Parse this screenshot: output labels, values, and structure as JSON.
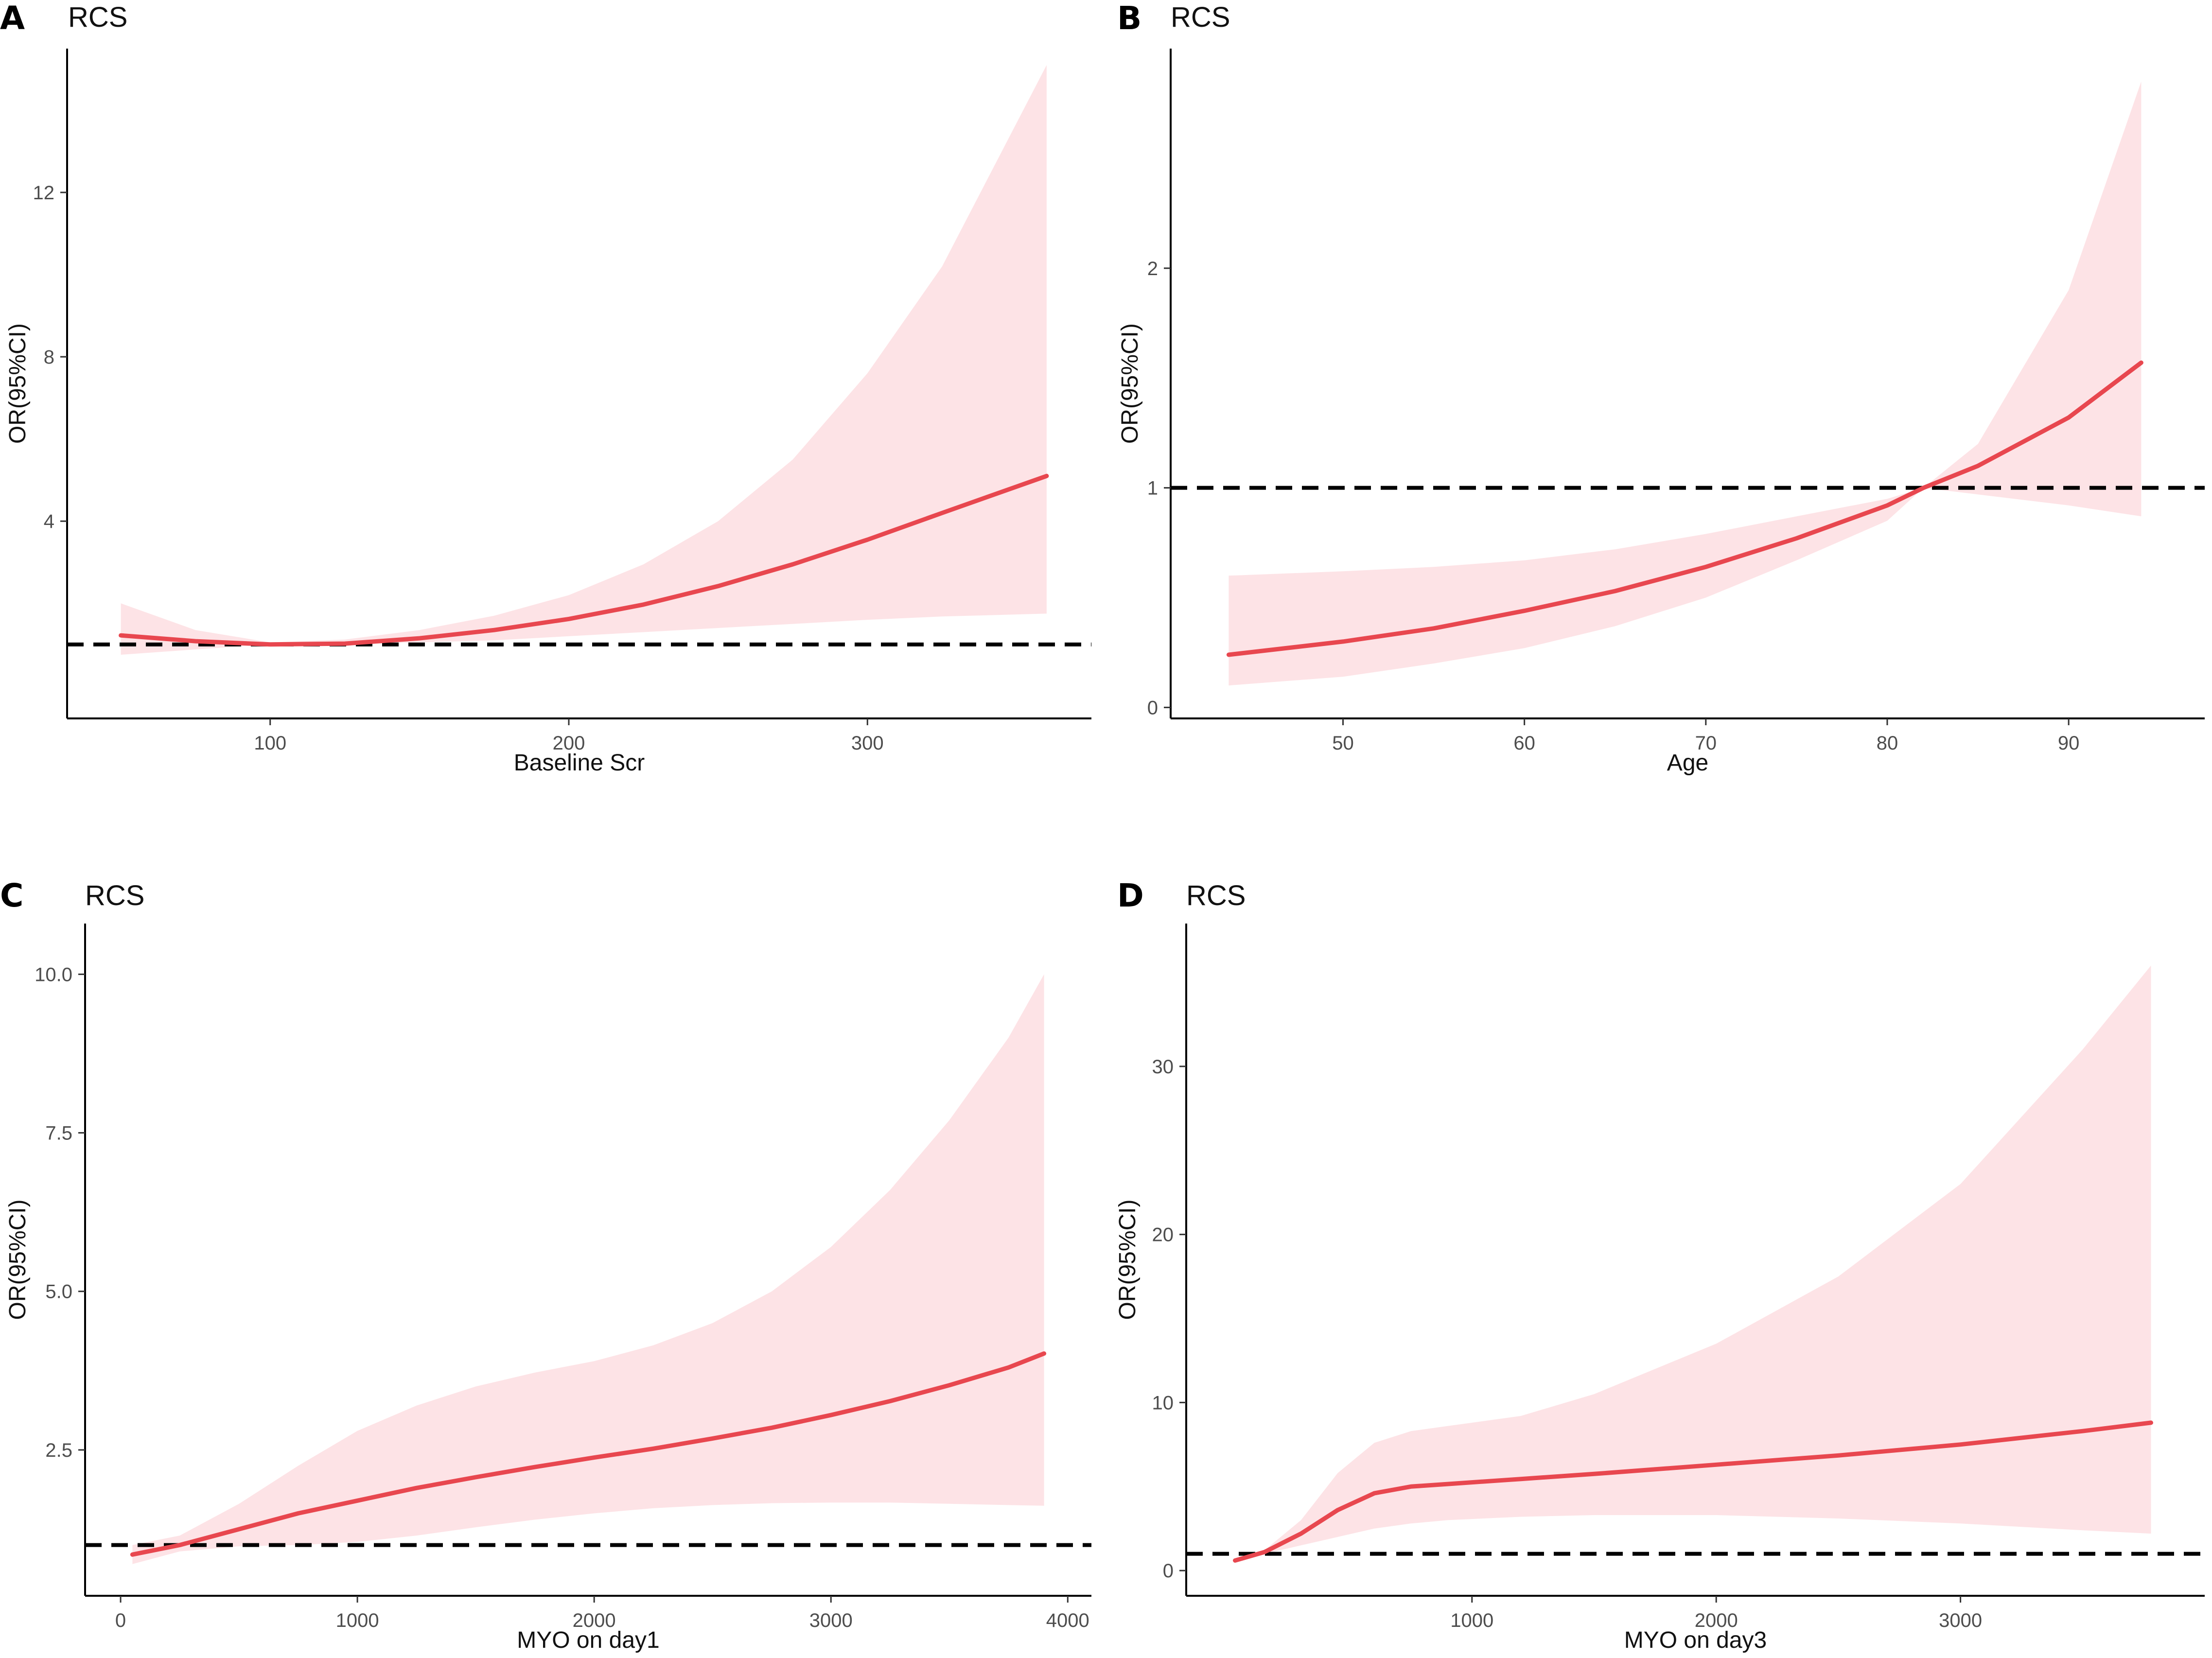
{
  "chart_data": [
    {
      "type": "line",
      "panel_letter": "A",
      "title": "RCS",
      "xlabel": "Baseline Scr",
      "ylabel": "OR(95%CI)",
      "xlim": [
        32,
        375
      ],
      "ylim": [
        -0.8,
        15.5
      ],
      "x_ticks": [
        100,
        200,
        300
      ],
      "y_ticks": [
        4,
        8,
        12
      ],
      "reference_line": 1,
      "series": [
        {
          "name": "OR",
          "x": [
            50,
            75,
            100,
            125,
            150,
            175,
            200,
            225,
            250,
            275,
            300,
            325,
            360
          ],
          "values": [
            1.22,
            1.08,
            1.0,
            1.02,
            1.15,
            1.35,
            1.62,
            1.97,
            2.42,
            2.95,
            3.55,
            4.2,
            5.1
          ]
        },
        {
          "name": "CI lower",
          "x": [
            50,
            75,
            100,
            125,
            150,
            175,
            200,
            225,
            250,
            275,
            300,
            325,
            360
          ],
          "values": [
            0.75,
            0.88,
            1.0,
            1.02,
            1.05,
            1.1,
            1.2,
            1.3,
            1.4,
            1.5,
            1.6,
            1.68,
            1.75
          ]
        },
        {
          "name": "CI upper",
          "x": [
            50,
            75,
            100,
            125,
            150,
            175,
            200,
            225,
            250,
            275,
            300,
            325,
            360
          ],
          "values": [
            2.0,
            1.35,
            1.05,
            1.12,
            1.35,
            1.7,
            2.2,
            2.95,
            4.0,
            5.5,
            7.6,
            10.2,
            15.1
          ]
        }
      ]
    },
    {
      "type": "line",
      "panel_letter": "B",
      "title": "RCS",
      "xlabel": "Age",
      "ylabel": "OR(95%CI)",
      "xlim": [
        40.5,
        97.5
      ],
      "ylim": [
        -0.05,
        3.0
      ],
      "x_ticks": [
        50,
        60,
        70,
        80,
        90
      ],
      "y_ticks": [
        0,
        1,
        2
      ],
      "reference_line": 1,
      "series": [
        {
          "name": "OR",
          "x": [
            43.7,
            50,
            55,
            60,
            65,
            70,
            75,
            80,
            82,
            85,
            90,
            94
          ],
          "values": [
            0.24,
            0.3,
            0.36,
            0.44,
            0.53,
            0.64,
            0.77,
            0.92,
            1.0,
            1.1,
            1.32,
            1.57
          ]
        },
        {
          "name": "CI lower",
          "x": [
            43.7,
            50,
            55,
            60,
            65,
            70,
            75,
            80,
            82,
            85,
            90,
            94
          ],
          "values": [
            0.1,
            0.14,
            0.2,
            0.27,
            0.37,
            0.5,
            0.67,
            0.85,
            1.0,
            0.97,
            0.92,
            0.87
          ]
        },
        {
          "name": "CI upper",
          "x": [
            43.7,
            50,
            55,
            60,
            65,
            70,
            75,
            80,
            82,
            85,
            90,
            94
          ],
          "values": [
            0.6,
            0.62,
            0.64,
            0.67,
            0.72,
            0.79,
            0.87,
            0.95,
            1.0,
            1.2,
            1.9,
            2.85
          ]
        }
      ]
    },
    {
      "type": "line",
      "panel_letter": "C",
      "title": "RCS",
      "xlabel": "MYO on day1",
      "ylabel": "OR(95%CI)",
      "xlim": [
        -150,
        4100
      ],
      "ylim": [
        0.2,
        10.8
      ],
      "x_ticks": [
        0,
        1000,
        2000,
        3000,
        4000
      ],
      "y_ticks": [
        2.5,
        5.0,
        7.5,
        10.0
      ],
      "y_tick_labels": [
        "2.5",
        "5.0",
        "7.5",
        "10.0"
      ],
      "reference_line": 1,
      "series": [
        {
          "name": "OR",
          "x": [
            50,
            250,
            500,
            750,
            1000,
            1250,
            1500,
            1750,
            2000,
            2250,
            2500,
            2750,
            3000,
            3250,
            3500,
            3750,
            3900
          ],
          "values": [
            0.85,
            1.0,
            1.25,
            1.5,
            1.7,
            1.9,
            2.07,
            2.23,
            2.38,
            2.52,
            2.68,
            2.85,
            3.05,
            3.27,
            3.52,
            3.8,
            4.02
          ]
        },
        {
          "name": "CI lower",
          "x": [
            50,
            250,
            500,
            750,
            1000,
            1250,
            1500,
            1750,
            2000,
            2250,
            2500,
            2750,
            3000,
            3250,
            3500,
            3750,
            3900
          ],
          "values": [
            0.7,
            0.9,
            0.98,
            1.0,
            1.05,
            1.15,
            1.28,
            1.4,
            1.5,
            1.58,
            1.63,
            1.66,
            1.67,
            1.67,
            1.65,
            1.63,
            1.62
          ]
        },
        {
          "name": "CI upper",
          "x": [
            50,
            250,
            500,
            750,
            1000,
            1250,
            1500,
            1750,
            2000,
            2250,
            2500,
            2750,
            3000,
            3250,
            3500,
            3750,
            3900
          ],
          "values": [
            1.0,
            1.15,
            1.65,
            2.25,
            2.8,
            3.2,
            3.5,
            3.72,
            3.9,
            4.15,
            4.5,
            5.0,
            5.7,
            6.6,
            7.7,
            9.0,
            10.0
          ]
        }
      ]
    },
    {
      "type": "line",
      "panel_letter": "D",
      "title": "RCS",
      "xlabel": "MYO on day3",
      "ylabel": "OR(95%CI)",
      "xlim": [
        -170,
        4000
      ],
      "ylim": [
        -1.5,
        38.5
      ],
      "x_ticks": [
        1000,
        2000,
        3000
      ],
      "y_ticks": [
        0,
        10,
        20,
        30
      ],
      "reference_line": 1,
      "series": [
        {
          "name": "OR",
          "x": [
            30,
            150,
            300,
            450,
            600,
            750,
            900,
            1200,
            1500,
            2000,
            2500,
            3000,
            3500,
            3780
          ],
          "values": [
            0.6,
            1.1,
            2.2,
            3.6,
            4.6,
            5.0,
            5.15,
            5.45,
            5.75,
            6.3,
            6.85,
            7.5,
            8.3,
            8.8
          ]
        },
        {
          "name": "CI lower",
          "x": [
            30,
            150,
            300,
            450,
            600,
            750,
            900,
            1200,
            1500,
            2000,
            2500,
            3000,
            3500,
            3780
          ],
          "values": [
            0.5,
            1.0,
            1.5,
            2.0,
            2.5,
            2.8,
            3.0,
            3.2,
            3.3,
            3.3,
            3.1,
            2.8,
            2.4,
            2.2
          ]
        },
        {
          "name": "CI upper",
          "x": [
            30,
            150,
            300,
            450,
            600,
            750,
            900,
            1200,
            1500,
            2000,
            2500,
            3000,
            3500,
            3780
          ],
          "values": [
            0.7,
            1.2,
            3.0,
            5.8,
            7.6,
            8.3,
            8.6,
            9.2,
            10.5,
            13.5,
            17.5,
            23.0,
            31.0,
            36.0
          ]
        }
      ]
    }
  ],
  "colors": {
    "line": "#e8474f",
    "band": "#fde3e6",
    "reference": "#000000",
    "tick_text": "#4d4d4d"
  }
}
